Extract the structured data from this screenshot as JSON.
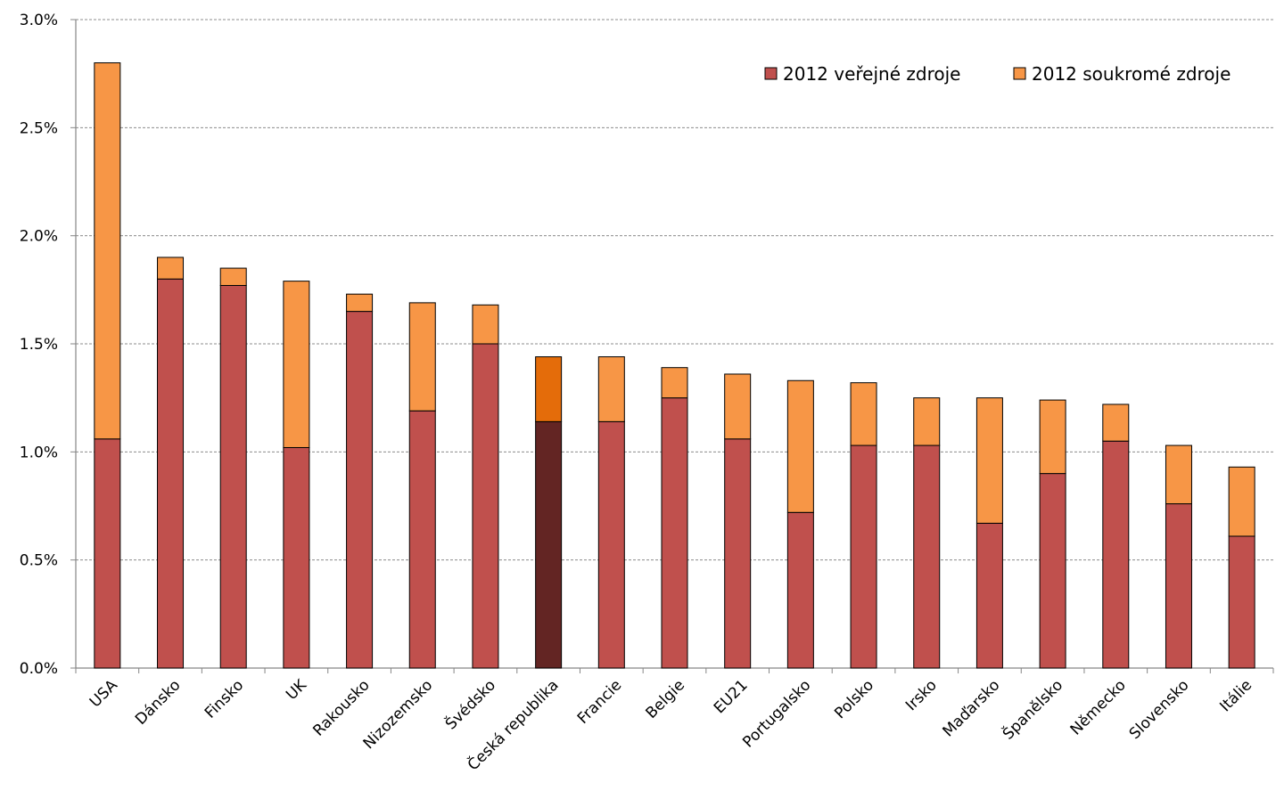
{
  "chart_data": {
    "type": "bar",
    "stacked": true,
    "title": "",
    "xlabel": "",
    "ylabel": "",
    "ylim": [
      0,
      3.0
    ],
    "y_ticks": [
      "0.0%",
      "0.5%",
      "1.0%",
      "1.5%",
      "2.0%",
      "2.5%",
      "3.0%"
    ],
    "y_tick_values": [
      0,
      0.5,
      1.0,
      1.5,
      2.0,
      2.5,
      3.0
    ],
    "grid": true,
    "legend_position": "top-right",
    "categories": [
      "USA",
      "Dánsko",
      "Finsko",
      "UK",
      "Rakousko",
      "Nizozemsko",
      "Švédsko",
      "Česká republika",
      "Francie",
      "Belgie",
      "EU21",
      "Portugalsko",
      "Polsko",
      "Irsko",
      "Maďarsko",
      "Španělsko",
      "Německo",
      "Slovensko",
      "Itálie"
    ],
    "series": [
      {
        "name": "2012 veřejné zdroje",
        "color": "#c0504d",
        "values": [
          1.06,
          1.8,
          1.77,
          1.02,
          1.65,
          1.19,
          1.5,
          1.14,
          1.14,
          1.25,
          1.06,
          0.72,
          1.03,
          1.03,
          0.67,
          0.9,
          1.05,
          0.76,
          0.61
        ]
      },
      {
        "name": "2012 soukromé zdroje",
        "color": "#f79646",
        "values": [
          1.74,
          0.1,
          0.08,
          0.77,
          0.08,
          0.5,
          0.18,
          0.3,
          0.3,
          0.14,
          0.3,
          0.61,
          0.29,
          0.22,
          0.58,
          0.34,
          0.17,
          0.27,
          0.32
        ]
      }
    ],
    "highlight": {
      "category": "Česká republika",
      "colors": [
        "#632523",
        "#e46c0a"
      ]
    }
  }
}
